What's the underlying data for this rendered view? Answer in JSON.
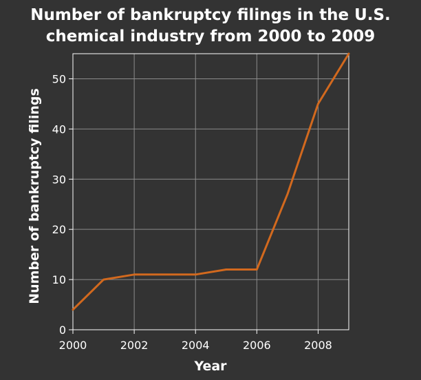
{
  "chart_data": {
    "type": "line",
    "title_lines": [
      "Number of bankruptcy filings in the U.S.",
      "chemical industry from 2000 to 2009"
    ],
    "xlabel": "Year",
    "ylabel": "Number of bankruptcy filings",
    "xlim": [
      2000,
      2009
    ],
    "ylim": [
      0,
      55
    ],
    "x_ticks": [
      2000,
      2002,
      2004,
      2006,
      2008
    ],
    "y_ticks": [
      0,
      10,
      20,
      30,
      40,
      50
    ],
    "grid": true,
    "colors": {
      "background": "#333333",
      "line": "#d2691e",
      "grid": "#8c8c8c",
      "text": "#ffffff"
    },
    "series": [
      {
        "x": [
          2000,
          2001,
          2002,
          2003,
          2004,
          2005,
          2006,
          2007,
          2008,
          2009
        ],
        "values": [
          4,
          10,
          11,
          11,
          11,
          12,
          12,
          27,
          45,
          55
        ]
      }
    ]
  }
}
